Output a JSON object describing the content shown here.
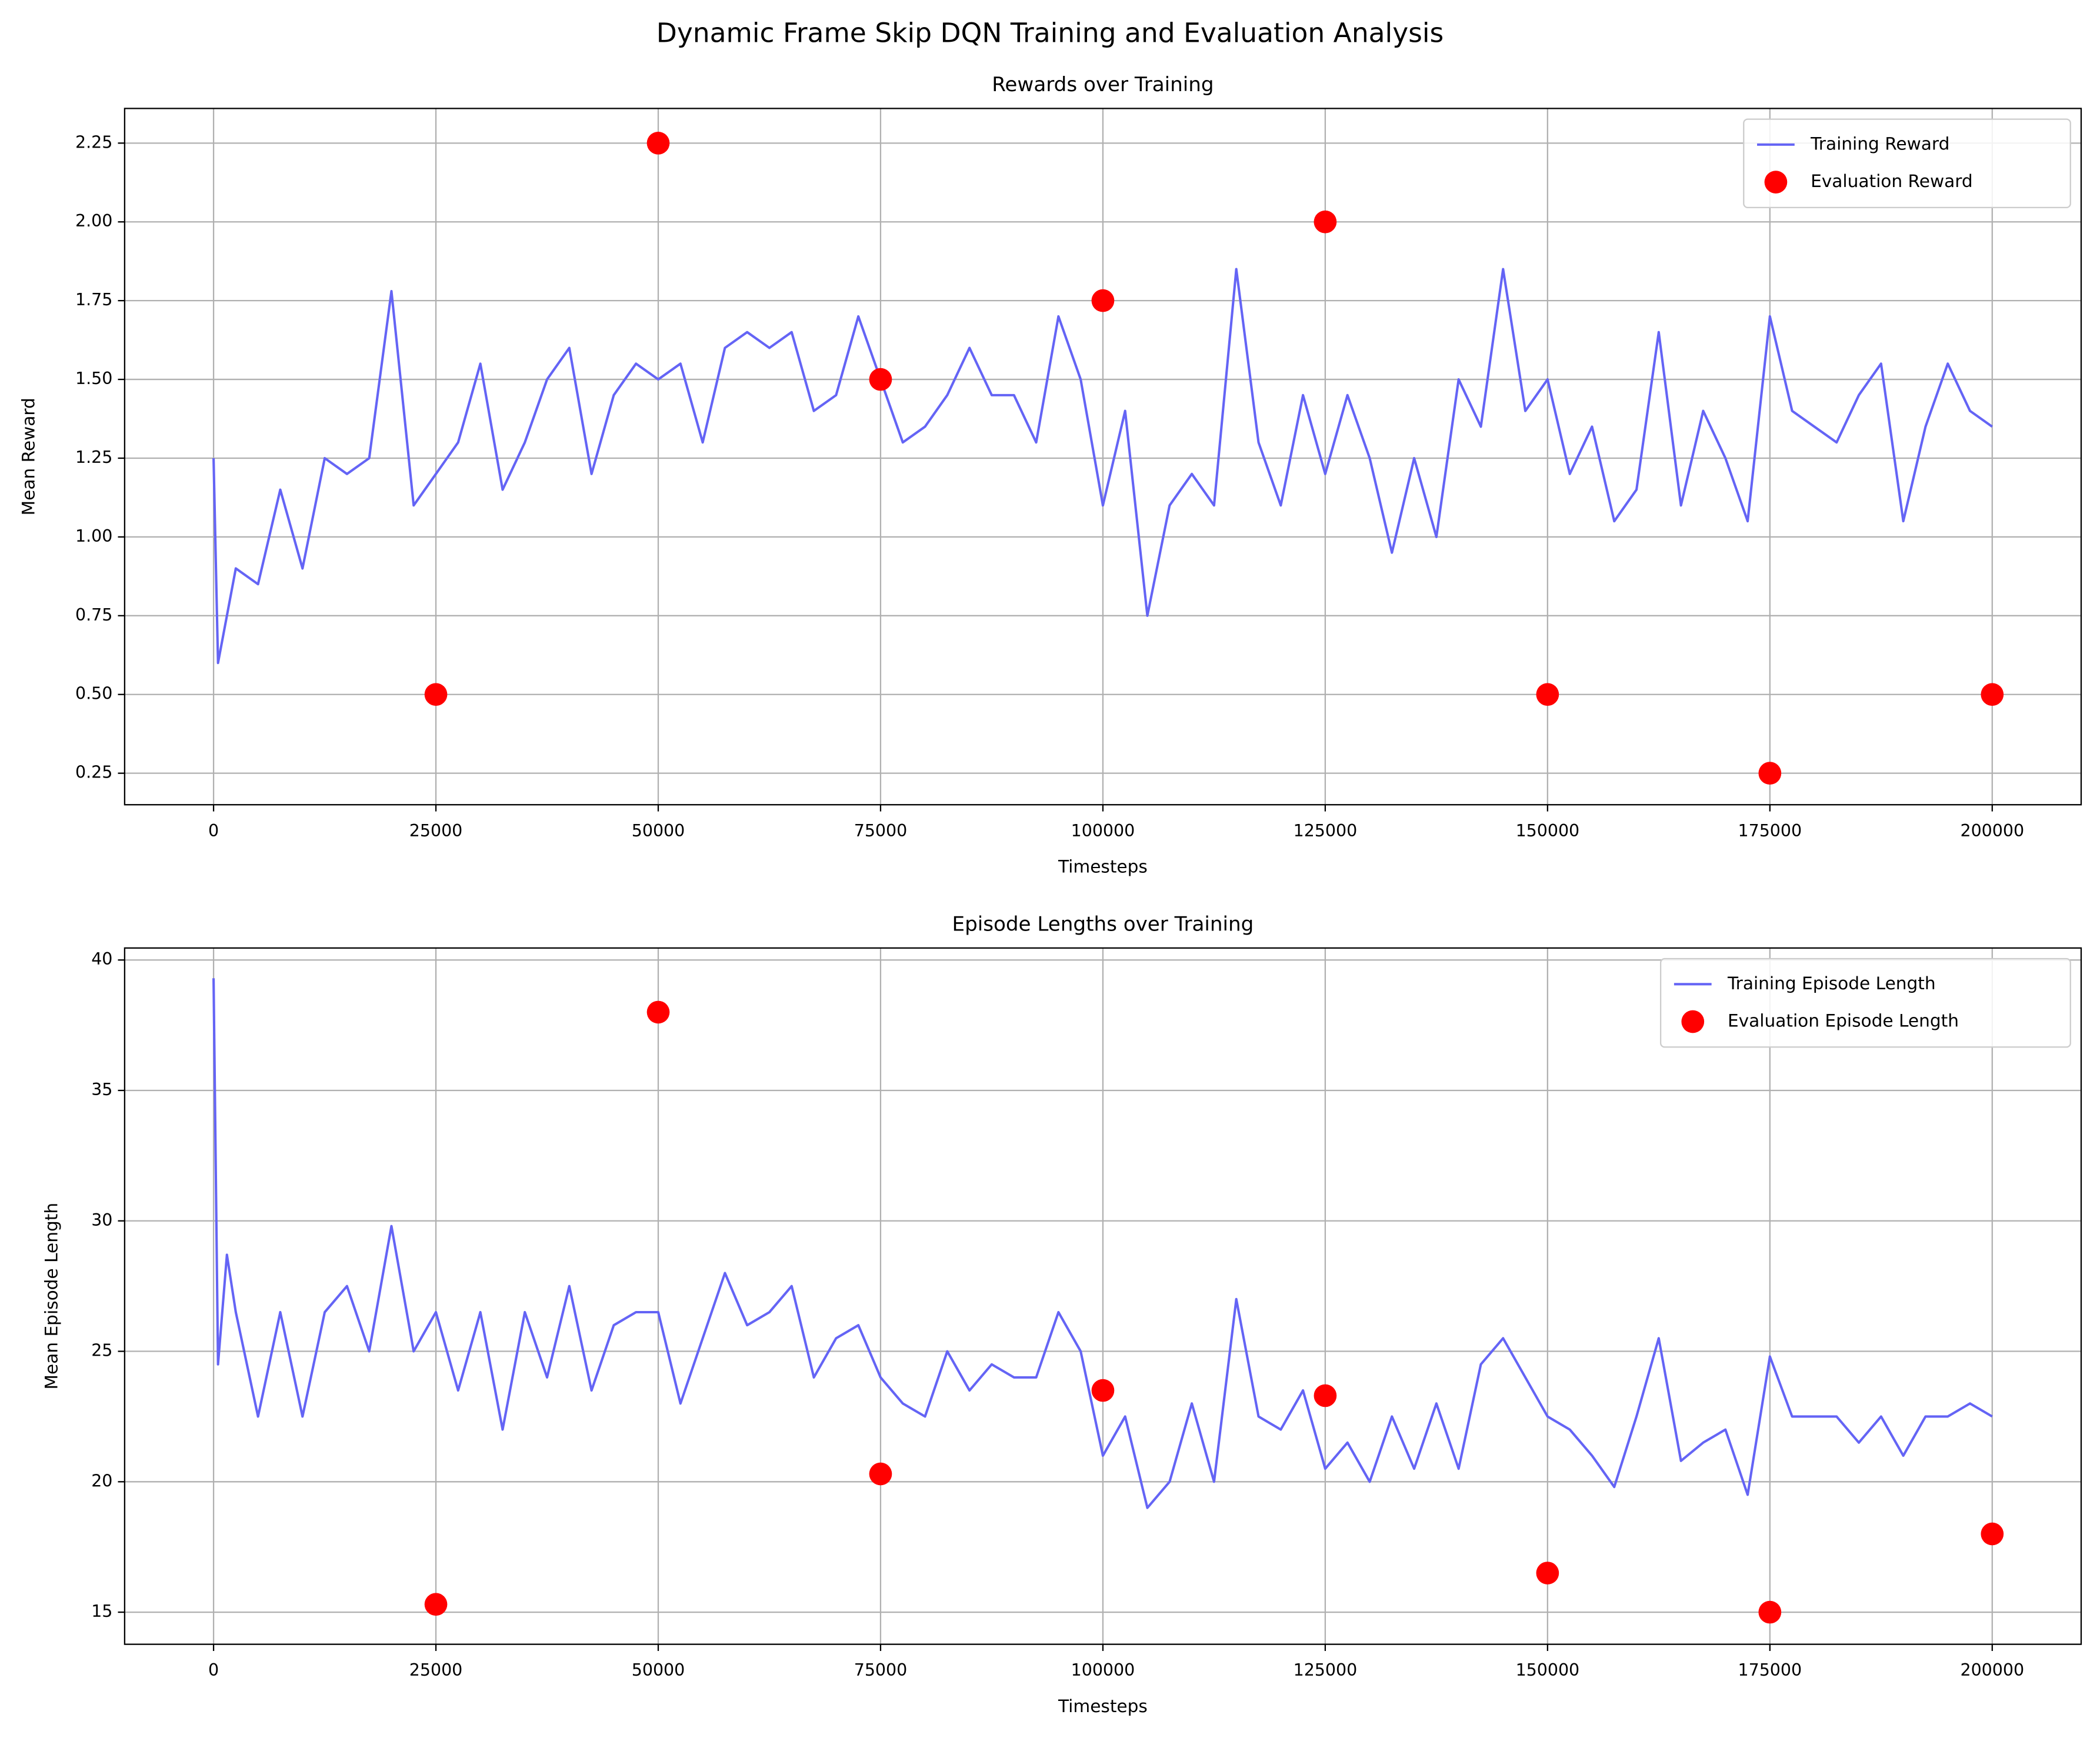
{
  "title": "Dynamic Frame Skip DQN Training and Evaluation Analysis",
  "chart_data": [
    {
      "type": "line",
      "title": "Rewards over Training",
      "x_label": "Timesteps",
      "y_label": "Mean Reward",
      "xlim": [
        -10000,
        210000
      ],
      "ylim": [
        0.15,
        2.36
      ],
      "xticks": [
        0,
        25000,
        50000,
        75000,
        100000,
        125000,
        150000,
        175000,
        200000
      ],
      "yticks": [
        0.25,
        {
          "value": 0.5,
          "label": "0.50"
        },
        0.75,
        {
          "value": 1.0,
          "label": "1.00"
        },
        1.25,
        {
          "value": 1.5,
          "label": "1.50"
        },
        1.75,
        {
          "value": 2.0,
          "label": "2.00"
        },
        2.25
      ],
      "grid": true,
      "legend": "upper right",
      "series": [
        {
          "name": "Training Reward",
          "type": "line",
          "color": "#6464f5",
          "x": [
            0,
            500,
            2500,
            5000,
            7500,
            10000,
            12500,
            15000,
            17500,
            20000,
            22500,
            25000,
            27500,
            30000,
            32500,
            35000,
            37500,
            40000,
            42500,
            45000,
            47500,
            50000,
            52500,
            55000,
            57500,
            60000,
            62500,
            65000,
            67500,
            70000,
            72500,
            75000,
            77500,
            80000,
            82500,
            85000,
            87500,
            90000,
            92500,
            95000,
            97500,
            100000,
            102500,
            105000,
            107500,
            110000,
            112500,
            115000,
            117500,
            120000,
            122500,
            125000,
            127500,
            130000,
            132500,
            135000,
            137500,
            140000,
            142500,
            145000,
            147500,
            150000,
            152500,
            155000,
            157500,
            160000,
            162500,
            165000,
            167500,
            170000,
            172500,
            175000,
            177500,
            180000,
            182500,
            185000,
            187500,
            190000,
            192500,
            195000,
            197500,
            200000
          ],
          "values": [
            1.25,
            0.6,
            0.9,
            0.85,
            1.15,
            0.9,
            1.25,
            1.2,
            1.25,
            1.78,
            1.1,
            1.2,
            1.3,
            1.55,
            1.15,
            1.3,
            1.5,
            1.6,
            1.2,
            1.45,
            1.55,
            1.5,
            1.55,
            1.3,
            1.6,
            1.65,
            1.6,
            1.65,
            1.4,
            1.45,
            1.7,
            1.5,
            1.3,
            1.35,
            1.45,
            1.6,
            1.45,
            1.45,
            1.3,
            1.7,
            1.5,
            1.1,
            1.4,
            0.75,
            1.1,
            1.2,
            1.1,
            1.85,
            1.3,
            1.1,
            1.45,
            1.2,
            1.45,
            1.25,
            0.95,
            1.25,
            1.0,
            1.5,
            1.35,
            1.85,
            1.4,
            1.5,
            1.2,
            1.35,
            1.05,
            1.15,
            1.65,
            1.1,
            1.4,
            1.25,
            1.05,
            1.7,
            1.4,
            1.35,
            1.3,
            1.45,
            1.55,
            1.05,
            1.35,
            1.55,
            1.4,
            1.35
          ]
        },
        {
          "name": "Evaluation Reward",
          "type": "scatter",
          "color": "#ff0000",
          "x": [
            25000,
            50000,
            75000,
            100000,
            125000,
            150000,
            175000,
            200000
          ],
          "values": [
            0.5,
            2.25,
            1.5,
            1.75,
            2.0,
            0.5,
            0.25,
            0.5
          ]
        }
      ]
    },
    {
      "type": "line",
      "title": "Episode Lengths over Training",
      "x_label": "Timesteps",
      "y_label": "Mean Episode Length",
      "xlim": [
        -10000,
        210000
      ],
      "ylim": [
        13.77,
        40.46
      ],
      "xticks": [
        0,
        25000,
        50000,
        75000,
        100000,
        125000,
        150000,
        175000,
        200000
      ],
      "yticks": [
        15,
        20,
        25,
        30,
        35,
        40
      ],
      "grid": true,
      "legend": "upper right",
      "series": [
        {
          "name": "Training Episode Length",
          "type": "line",
          "color": "#6464f5",
          "x": [
            0,
            500,
            1500,
            2500,
            5000,
            7500,
            10000,
            12500,
            15000,
            17500,
            20000,
            22500,
            25000,
            27500,
            30000,
            32500,
            35000,
            37500,
            40000,
            42500,
            45000,
            47500,
            50000,
            52500,
            55000,
            57500,
            60000,
            62500,
            65000,
            67500,
            70000,
            72500,
            75000,
            77500,
            80000,
            82500,
            85000,
            87500,
            90000,
            92500,
            95000,
            97500,
            100000,
            102500,
            105000,
            107500,
            110000,
            112500,
            115000,
            117500,
            120000,
            122500,
            125000,
            127500,
            130000,
            132500,
            135000,
            137500,
            140000,
            142500,
            145000,
            147500,
            150000,
            152500,
            155000,
            157500,
            160000,
            162500,
            165000,
            167500,
            170000,
            172500,
            175000,
            177500,
            180000,
            182500,
            185000,
            187500,
            190000,
            192500,
            195000,
            197500,
            200000
          ],
          "values": [
            39.3,
            24.5,
            28.7,
            26.5,
            22.5,
            26.5,
            22.5,
            26.5,
            27.5,
            25,
            29.8,
            25,
            26.5,
            23.5,
            26.5,
            22,
            26.5,
            24,
            27.5,
            23.5,
            26,
            26.5,
            26.5,
            23,
            25.5,
            28,
            26,
            26.5,
            27.5,
            24,
            25.5,
            26,
            24,
            23,
            22.5,
            25,
            23.5,
            24.5,
            24,
            24,
            26.5,
            25,
            21,
            22.5,
            19,
            20,
            23,
            20,
            27,
            22.5,
            22,
            23.5,
            20.5,
            21.5,
            20,
            22.5,
            20.5,
            23,
            20.5,
            24.5,
            25.5,
            24,
            22.5,
            22,
            21,
            19.8,
            22.5,
            25.5,
            20.8,
            21.5,
            22,
            19.5,
            24.8,
            22.5,
            22.5,
            22.5,
            21.5,
            22.5,
            21,
            22.5,
            22.5,
            23,
            22.5
          ]
        },
        {
          "name": "Evaluation Episode Length",
          "type": "scatter",
          "color": "#ff0000",
          "x": [
            25000,
            50000,
            75000,
            100000,
            125000,
            150000,
            175000,
            200000
          ],
          "values": [
            15.3,
            38,
            20.3,
            23.5,
            23.3,
            16.5,
            15,
            18
          ]
        }
      ]
    }
  ]
}
